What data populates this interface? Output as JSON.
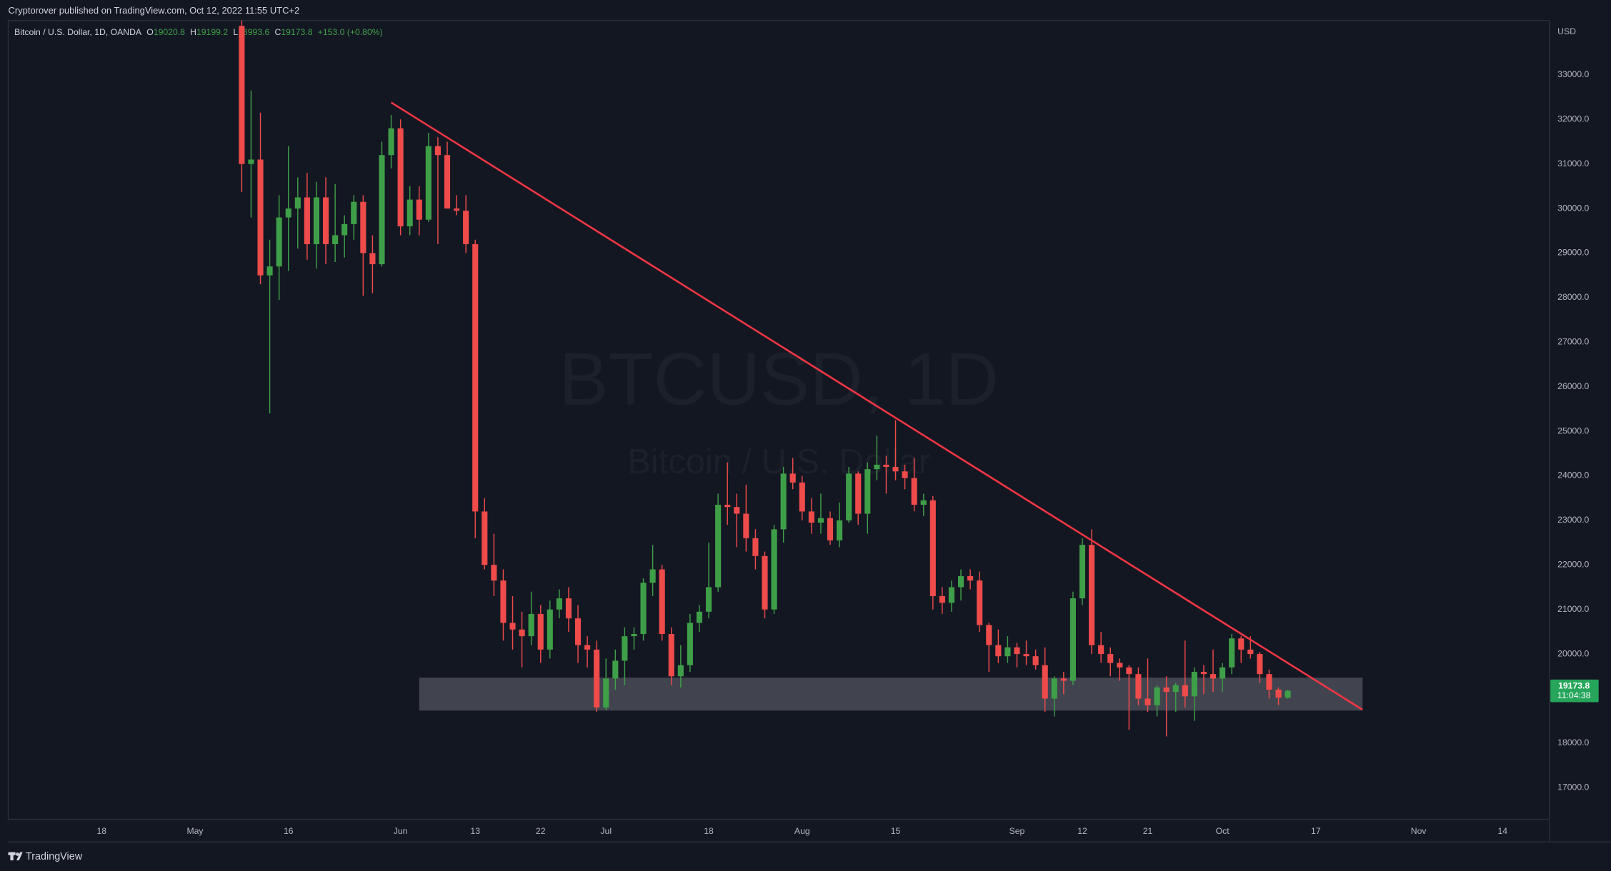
{
  "publisher_line": "Cryptorover published on TradingView.com, Oct 12, 2022 11:55 UTC+2",
  "branding": "TradingView",
  "chart_data": {
    "type": "candlestick",
    "title": "Bitcoin / U.S. Dollar, 1D, OANDA",
    "ohlc_legend": [
      {
        "key": "O",
        "value": "19020.8"
      },
      {
        "key": "H",
        "value": "19199.2"
      },
      {
        "key": "L",
        "value": "18993.6"
      },
      {
        "key": "C",
        "value": "19173.8"
      }
    ],
    "change": "+153.0 (+0.80%)",
    "watermark": {
      "symbol": "BTCUSD, 1D",
      "description": "Bitcoin / U.S. Dollar"
    },
    "y_axis_label": "USD",
    "last_price": {
      "label": "19173.8",
      "countdown": "11:04:38",
      "color": "#26a65b"
    },
    "up_color": "#3f9f48",
    "down_color": "#ef4b4b",
    "x": [
      "2022-05-09",
      "2022-05-10",
      "2022-05-11",
      "2022-05-12",
      "2022-05-13",
      "2022-05-16",
      "2022-05-17",
      "2022-05-18",
      "2022-05-19",
      "2022-05-20",
      "2022-05-23",
      "2022-05-24",
      "2022-05-25",
      "2022-05-26",
      "2022-05-27",
      "2022-05-30",
      "2022-05-31",
      "2022-06-01",
      "2022-06-02",
      "2022-06-03",
      "2022-06-06",
      "2022-06-07",
      "2022-06-08",
      "2022-06-09",
      "2022-06-10",
      "2022-06-13",
      "2022-06-14",
      "2022-06-15",
      "2022-06-16",
      "2022-06-17",
      "2022-06-20",
      "2022-06-21",
      "2022-06-22",
      "2022-06-23",
      "2022-06-24",
      "2022-06-27",
      "2022-06-28",
      "2022-06-29",
      "2022-06-30",
      "2022-07-01",
      "2022-07-04",
      "2022-07-05",
      "2022-07-06",
      "2022-07-07",
      "2022-07-08",
      "2022-07-11",
      "2022-07-12",
      "2022-07-13",
      "2022-07-14",
      "2022-07-15",
      "2022-07-18",
      "2022-07-19",
      "2022-07-20",
      "2022-07-21",
      "2022-07-22",
      "2022-07-25",
      "2022-07-26",
      "2022-07-27",
      "2022-07-28",
      "2022-07-29",
      "2022-08-01",
      "2022-08-02",
      "2022-08-03",
      "2022-08-04",
      "2022-08-05",
      "2022-08-08",
      "2022-08-09",
      "2022-08-10",
      "2022-08-11",
      "2022-08-12",
      "2022-08-15",
      "2022-08-16",
      "2022-08-17",
      "2022-08-18",
      "2022-08-19",
      "2022-08-22",
      "2022-08-23",
      "2022-08-24",
      "2022-08-25",
      "2022-08-26",
      "2022-08-29",
      "2022-08-30",
      "2022-08-31",
      "2022-09-01",
      "2022-09-02",
      "2022-09-05",
      "2022-09-06",
      "2022-09-07",
      "2022-09-08",
      "2022-09-09",
      "2022-09-12",
      "2022-09-13",
      "2022-09-14",
      "2022-09-15",
      "2022-09-16",
      "2022-09-19",
      "2022-09-20",
      "2022-09-21",
      "2022-09-22",
      "2022-09-23",
      "2022-09-26",
      "2022-09-27",
      "2022-09-28",
      "2022-09-29",
      "2022-09-30",
      "2022-10-03",
      "2022-10-04",
      "2022-10-05",
      "2022-10-06",
      "2022-10-07",
      "2022-10-10",
      "2022-10-11",
      "2022-10-12"
    ],
    "open": [
      34100,
      31000,
      31100,
      28500,
      28700,
      29800,
      30000,
      30250,
      29200,
      30250,
      29200,
      29400,
      29650,
      30150,
      29000,
      28750,
      31200,
      31800,
      29600,
      30200,
      29750,
      31400,
      31200,
      30000,
      29950,
      29200,
      23200,
      22000,
      21650,
      20700,
      20550,
      20400,
      20900,
      20100,
      21000,
      21250,
      20800,
      20200,
      20100,
      18800,
      19450,
      19850,
      20400,
      20450,
      21600,
      21900,
      20450,
      19500,
      19750,
      20700,
      20950,
      21500,
      23350,
      23300,
      23150,
      22600,
      22200,
      21000,
      22800,
      24050,
      23850,
      23200,
      22950,
      23050,
      22550,
      23000,
      24050,
      23150,
      24150,
      24250,
      24200,
      24100,
      23950,
      23350,
      23450,
      21300,
      21150,
      21500,
      21750,
      21650,
      20650,
      20200,
      19950,
      20150,
      20000,
      19950,
      19750,
      19000,
      19450,
      19400,
      21250,
      22450,
      20200,
      20000,
      19800,
      19700,
      19550,
      19000,
      18850,
      19250,
      19150,
      19300,
      19050,
      19600,
      19550,
      19450,
      19700,
      20350,
      20100,
      20000,
      19550,
      19200,
      19020.8
    ],
    "high": [
      34500,
      32650,
      32150,
      29300,
      30300,
      31400,
      30700,
      30800,
      30600,
      30700,
      30550,
      29850,
      30300,
      30300,
      29400,
      31500,
      32100,
      32000,
      30500,
      30500,
      31700,
      31600,
      31500,
      30300,
      30300,
      29300,
      23500,
      22700,
      21900,
      21300,
      20950,
      21400,
      21100,
      21200,
      21450,
      21500,
      21100,
      20400,
      20300,
      19900,
      20100,
      20600,
      20600,
      21700,
      22450,
      22000,
      20600,
      20200,
      20900,
      21100,
      22500,
      23600,
      24300,
      23600,
      23800,
      22800,
      22300,
      22900,
      24200,
      24400,
      24000,
      23500,
      23600,
      23200,
      23400,
      24200,
      24100,
      24300,
      24900,
      24450,
      25250,
      24250,
      24400,
      23600,
      23550,
      21500,
      21650,
      21900,
      21900,
      21850,
      20700,
      20550,
      20400,
      20250,
      20300,
      20100,
      20150,
      19500,
      19600,
      21400,
      22600,
      22800,
      20500,
      20150,
      19900,
      19750,
      19700,
      19900,
      19300,
      19500,
      19350,
      20300,
      19700,
      19750,
      20100,
      19800,
      20450,
      20400,
      20400,
      20050,
      19650,
      19250,
      19199.2
    ],
    "low": [
      30370,
      29800,
      28300,
      25400,
      27950,
      28600,
      29100,
      28850,
      28650,
      28750,
      28800,
      28900,
      29300,
      28040,
      28100,
      28700,
      30900,
      29400,
      29400,
      29400,
      29700,
      29200,
      30000,
      29850,
      29000,
      22600,
      21900,
      21300,
      20300,
      20100,
      19700,
      20200,
      19800,
      19900,
      20800,
      20500,
      19800,
      19700,
      18700,
      18750,
      19200,
      19300,
      20100,
      20300,
      21300,
      20300,
      19300,
      19250,
      19600,
      20500,
      20800,
      21400,
      22900,
      22400,
      22300,
      21900,
      20800,
      20900,
      22500,
      23700,
      23000,
      22700,
      22700,
      22450,
      22400,
      22950,
      22900,
      22700,
      23900,
      23600,
      23900,
      23700,
      23200,
      23100,
      21000,
      20900,
      20950,
      21200,
      21450,
      20500,
      19600,
      19800,
      19800,
      19700,
      19750,
      19650,
      18700,
      18600,
      19100,
      19300,
      21100,
      20000,
      19800,
      19500,
      19400,
      18300,
      18850,
      18700,
      18600,
      18150,
      18700,
      18800,
      18500,
      19100,
      19150,
      19150,
      19550,
      19800,
      19900,
      19350,
      19000,
      18850,
      18993.6
    ],
    "close": [
      31000,
      31100,
      28500,
      28700,
      29800,
      30000,
      30250,
      29200,
      30250,
      29200,
      29400,
      29650,
      30150,
      29000,
      28750,
      31200,
      31800,
      29600,
      30200,
      29750,
      31400,
      31200,
      30000,
      29950,
      29200,
      23200,
      22000,
      21650,
      20700,
      20550,
      20400,
      20900,
      20100,
      21000,
      21250,
      20800,
      20200,
      20100,
      18800,
      19450,
      19850,
      20400,
      20450,
      21600,
      21900,
      20450,
      19500,
      19750,
      20700,
      20950,
      21500,
      23350,
      23300,
      23150,
      22600,
      22200,
      21000,
      22800,
      24050,
      23850,
      23200,
      22950,
      23050,
      22550,
      23000,
      24050,
      23150,
      24150,
      24250,
      24200,
      24100,
      23950,
      23350,
      23450,
      21300,
      21150,
      21500,
      21750,
      21650,
      20650,
      20200,
      19950,
      20150,
      20000,
      19950,
      19750,
      19000,
      19450,
      19400,
      21250,
      22450,
      20200,
      20000,
      19800,
      19700,
      19550,
      19000,
      18850,
      19250,
      19150,
      19300,
      19050,
      19600,
      19550,
      19450,
      19700,
      20350,
      20100,
      20000,
      19550,
      19200,
      19020.8,
      19173.8
    ],
    "xlim": [
      "2022-04-04",
      "2022-11-21"
    ],
    "ylim": [
      16290,
      34220
    ],
    "yticks": [
      {
        "value": 17000,
        "label": "17000.0"
      },
      {
        "value": 18000,
        "label": "18000.0"
      },
      {
        "value": 19000,
        "label": "19000.0"
      },
      {
        "value": 20000,
        "label": "20000.0"
      },
      {
        "value": 21000,
        "label": "21000.0"
      },
      {
        "value": 22000,
        "label": "22000.0"
      },
      {
        "value": 23000,
        "label": "23000.0"
      },
      {
        "value": 24000,
        "label": "24000.0"
      },
      {
        "value": 25000,
        "label": "25000.0"
      },
      {
        "value": 26000,
        "label": "26000.0"
      },
      {
        "value": 27000,
        "label": "27000.0"
      },
      {
        "value": 28000,
        "label": "28000.0"
      },
      {
        "value": 29000,
        "label": "29000.0"
      },
      {
        "value": 30000,
        "label": "30000.0"
      },
      {
        "value": 31000,
        "label": "31000.0"
      },
      {
        "value": 32000,
        "label": "32000.0"
      },
      {
        "value": 33000,
        "label": "33000.0"
      }
    ],
    "xticks": [
      {
        "value": "2022-04-18",
        "label": "18"
      },
      {
        "value": "2022-05-02",
        "label": "May"
      },
      {
        "value": "2022-05-16",
        "label": "16"
      },
      {
        "value": "2022-06-01",
        "label": "Jun"
      },
      {
        "value": "2022-06-13",
        "label": "13"
      },
      {
        "value": "2022-06-22",
        "label": "22"
      },
      {
        "value": "2022-07-01",
        "label": "Jul"
      },
      {
        "value": "2022-07-18",
        "label": "18"
      },
      {
        "value": "2022-08-01",
        "label": "Aug"
      },
      {
        "value": "2022-08-15",
        "label": "15"
      },
      {
        "value": "2022-09-01",
        "label": "Sep"
      },
      {
        "value": "2022-09-12",
        "label": "12"
      },
      {
        "value": "2022-09-21",
        "label": "21"
      },
      {
        "value": "2022-10-03",
        "label": "Oct"
      },
      {
        "value": "2022-10-17",
        "label": "17"
      },
      {
        "value": "2022-11-01",
        "label": "Nov"
      },
      {
        "value": "2022-11-14",
        "label": "14"
      }
    ],
    "grid": false,
    "trendline": {
      "x": [
        "2022-05-31",
        "2022-10-24"
      ],
      "y": [
        32380,
        18750
      ],
      "color": "#f23645"
    },
    "zone": {
      "x": [
        "2022-06-03",
        "2022-10-24"
      ],
      "y": [
        19470,
        18730
      ],
      "color": "#4a4c57"
    }
  }
}
